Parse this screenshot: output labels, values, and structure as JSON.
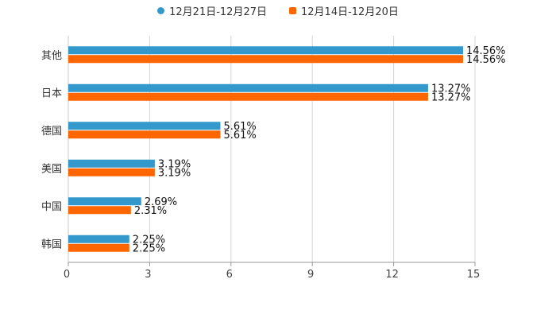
{
  "chart_data": {
    "type": "bar",
    "orientation": "horizontal",
    "title": "",
    "xlabel": "",
    "ylabel": "",
    "xlim": [
      0,
      15
    ],
    "ticks": [
      0,
      3,
      6,
      9,
      12,
      15
    ],
    "tick_labels": [
      "0",
      "3",
      "6",
      "9",
      "12",
      "15"
    ],
    "grid": true,
    "legend_position": "top-center",
    "categories": [
      "其他",
      "日本",
      "德国",
      "美国",
      "中国",
      "韩国"
    ],
    "series": [
      {
        "name": "12月21日-12月27日",
        "color": "#3399cc",
        "marker": "circle",
        "values": [
          14.56,
          13.27,
          5.61,
          3.19,
          2.69,
          2.25
        ],
        "labels": [
          "14.56%",
          "13.27%",
          "5.61%",
          "3.19%",
          "2.69%",
          "2.25%"
        ]
      },
      {
        "name": "12月14日-12月20日",
        "color": "#ff6600",
        "marker": "square",
        "values": [
          14.56,
          13.27,
          5.61,
          3.19,
          2.31,
          2.25
        ],
        "labels": [
          "14.56%",
          "13.27%",
          "5.61%",
          "3.19%",
          "2.31%",
          "2.25%"
        ]
      }
    ]
  }
}
